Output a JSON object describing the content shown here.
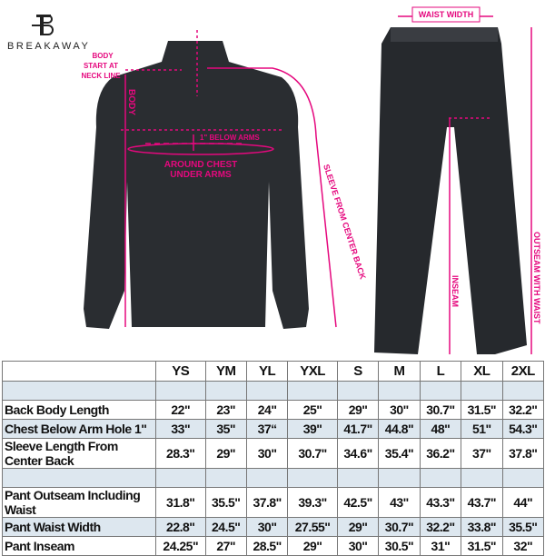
{
  "brand": {
    "name": "BREAKAWAY",
    "logo_icon": "b-monogram-logo"
  },
  "colors": {
    "annotation": "#e5087e",
    "garment": "#2a2d31",
    "row_shade": "#dde7ef"
  },
  "annotations": {
    "body_start": [
      "BODY",
      "START AT",
      "NECK LINE"
    ],
    "body": "BODY",
    "below_arms": "1\" BELOW ARMS",
    "chest": [
      "AROUND CHEST",
      "UNDER ARMS"
    ],
    "sleeve": "SLEEVE FROM CENTER BACK",
    "waist_width": "WAIST WIDTH",
    "inseam": "INSEAM",
    "outseam": "OUTSEAM WITH WAIST"
  },
  "table": {
    "sizes": [
      "YS",
      "YM",
      "YL",
      "YXL",
      "S",
      "M",
      "L",
      "XL",
      "2XL"
    ],
    "rows": [
      {
        "label": "",
        "values": [
          "",
          "",
          "",
          "",
          "",
          "",
          "",
          "",
          ""
        ],
        "shaded": true
      },
      {
        "label": "Back Body Length",
        "values": [
          "22\"",
          "23\"",
          "24\"",
          "25\"",
          "29\"",
          "30\"",
          "30.7\"",
          "31.5\"",
          "32.2\""
        ],
        "shaded": false
      },
      {
        "label": "Chest Below Arm Hole 1\"",
        "values": [
          "33\"",
          "35\"",
          "37“",
          "39\"",
          "41.7\"",
          "44.8\"",
          "48\"",
          "51\"",
          "54.3\""
        ],
        "shaded": true
      },
      {
        "label": "Sleeve Length From Center Back",
        "values": [
          "28.3\"",
          "29\"",
          "30\"",
          "30.7\"",
          "34.6\"",
          "35.4\"",
          "36.2\"",
          "37\"",
          "37.8\""
        ],
        "shaded": false
      },
      {
        "label": "",
        "values": [
          "",
          "",
          "",
          "",
          "",
          "",
          "",
          "",
          ""
        ],
        "shaded": true
      },
      {
        "label": "Pant Outseam Including Waist",
        "values": [
          "31.8\"",
          "35.5\"",
          "37.8\"",
          "39.3\"",
          "42.5\"",
          "43\"",
          "43.3\"",
          "43.7\"",
          "44\""
        ],
        "shaded": false
      },
      {
        "label": "Pant Waist Width",
        "values": [
          "22.8\"",
          "24.5\"",
          "30\"",
          "27.55\"",
          "29\"",
          "30.7\"",
          "32.2\"",
          "33.8\"",
          "35.5\""
        ],
        "shaded": true
      },
      {
        "label": "Pant Inseam",
        "values": [
          "24.25\"",
          "27\"",
          "28.5\"",
          "29\"",
          "30\"",
          "30.5\"",
          "31\"",
          "31.5\"",
          "32\""
        ],
        "shaded": false
      }
    ]
  }
}
